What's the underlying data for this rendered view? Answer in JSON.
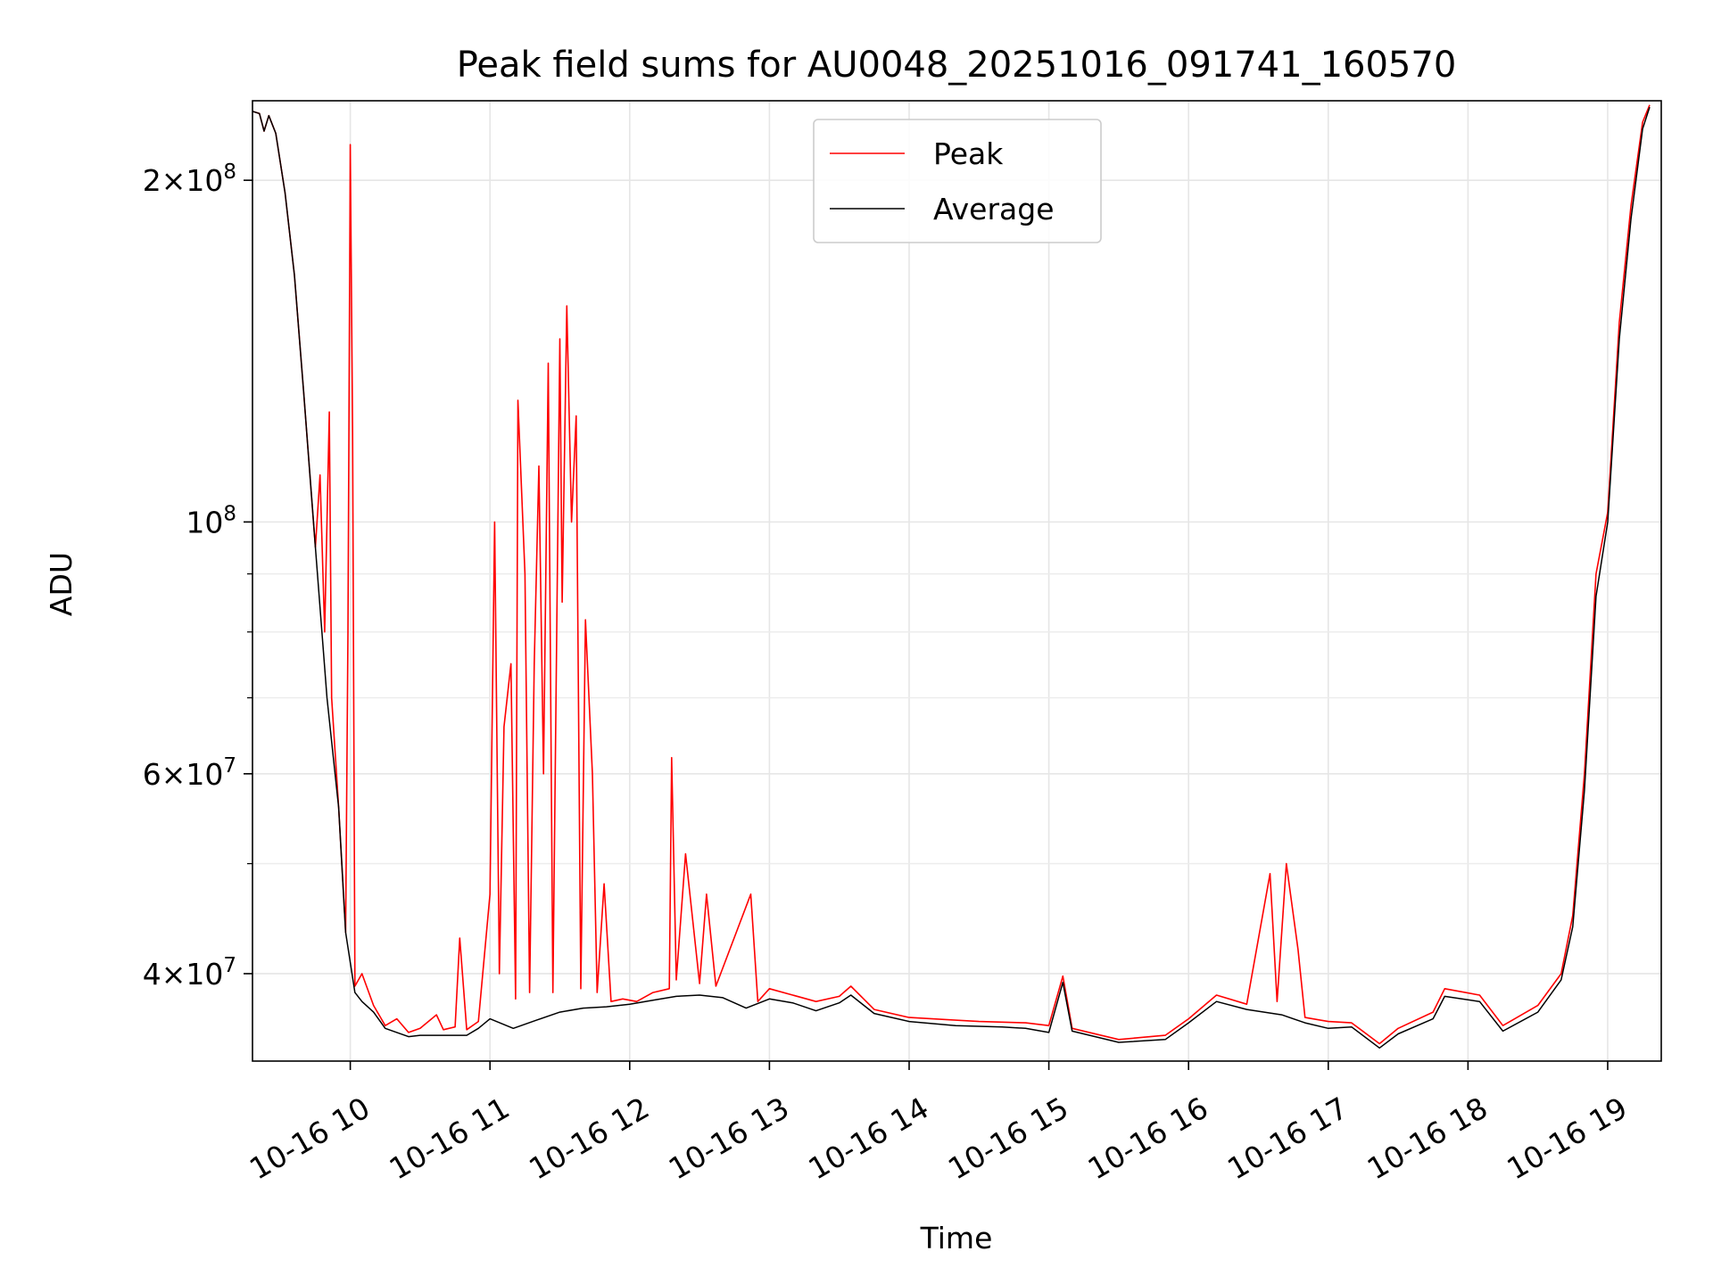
{
  "chart_data": {
    "type": "line",
    "title": "Peak field sums for AU0048_20251016_091741_160570",
    "xlabel": "Time",
    "ylabel": "ADU",
    "yscale": "log",
    "xlim": [
      "2025-10-16 09:18",
      "2025-10-16 19:23"
    ],
    "ylim": [
      33500000,
      235000000
    ],
    "grid": true,
    "legend_position": "top-center",
    "x_ticks": [
      {
        "value": "2025-10-16 10:00",
        "label": "10-16 10"
      },
      {
        "value": "2025-10-16 11:00",
        "label": "10-16 11"
      },
      {
        "value": "2025-10-16 12:00",
        "label": "10-16 12"
      },
      {
        "value": "2025-10-16 13:00",
        "label": "10-16 13"
      },
      {
        "value": "2025-10-16 14:00",
        "label": "10-16 14"
      },
      {
        "value": "2025-10-16 15:00",
        "label": "10-16 15"
      },
      {
        "value": "2025-10-16 16:00",
        "label": "10-16 16"
      },
      {
        "value": "2025-10-16 17:00",
        "label": "10-16 17"
      },
      {
        "value": "2025-10-16 18:00",
        "label": "10-16 18"
      },
      {
        "value": "2025-10-16 19:00",
        "label": "10-16 19"
      }
    ],
    "y_ticks": [
      {
        "value": 40000000,
        "mantissa": "4",
        "times": "×",
        "base": "10",
        "exp": "7"
      },
      {
        "value": 60000000,
        "mantissa": "6",
        "times": "×",
        "base": "10",
        "exp": "7"
      },
      {
        "value": 100000000,
        "mantissa": "",
        "times": "",
        "base": "10",
        "exp": "8"
      },
      {
        "value": 200000000,
        "mantissa": "2",
        "times": "×",
        "base": "10",
        "exp": "8"
      }
    ],
    "y_minor_ticks": [
      50000000,
      70000000,
      80000000,
      90000000
    ],
    "series": [
      {
        "name": "Peak",
        "color": "#ff0000",
        "points": [
          [
            "2025-10-16 09:18",
            230000000
          ],
          [
            "2025-10-16 09:21",
            229000000
          ],
          [
            "2025-10-16 09:23",
            221000000
          ],
          [
            "2025-10-16 09:25",
            228000000
          ],
          [
            "2025-10-16 09:28",
            220000000
          ],
          [
            "2025-10-16 09:32",
            195000000
          ],
          [
            "2025-10-16 09:36",
            165000000
          ],
          [
            "2025-10-16 09:40",
            130000000
          ],
          [
            "2025-10-16 09:45",
            95000000
          ],
          [
            "2025-10-16 09:47",
            110000000
          ],
          [
            "2025-10-16 09:49",
            80000000
          ],
          [
            "2025-10-16 09:51",
            125000000
          ],
          [
            "2025-10-16 09:52",
            70000000
          ],
          [
            "2025-10-16 09:55",
            56000000
          ],
          [
            "2025-10-16 09:58",
            43500000
          ],
          [
            "2025-10-16 09:59",
            80000000
          ],
          [
            "2025-10-16 10:00",
            215000000
          ],
          [
            "2025-10-16 10:01",
            120000000
          ],
          [
            "2025-10-16 10:02",
            39000000
          ],
          [
            "2025-10-16 10:05",
            40000000
          ],
          [
            "2025-10-16 10:10",
            37500000
          ],
          [
            "2025-10-16 10:15",
            36000000
          ],
          [
            "2025-10-16 10:20",
            36500000
          ],
          [
            "2025-10-16 10:25",
            35500000
          ],
          [
            "2025-10-16 10:30",
            35800000
          ],
          [
            "2025-10-16 10:37",
            36800000
          ],
          [
            "2025-10-16 10:40",
            35700000
          ],
          [
            "2025-10-16 10:45",
            35900000
          ],
          [
            "2025-10-16 10:47",
            43000000
          ],
          [
            "2025-10-16 10:50",
            35700000
          ],
          [
            "2025-10-16 10:55",
            36300000
          ],
          [
            "2025-10-16 11:00",
            47000000
          ],
          [
            "2025-10-16 11:02",
            100000000
          ],
          [
            "2025-10-16 11:04",
            40000000
          ],
          [
            "2025-10-16 11:06",
            66000000
          ],
          [
            "2025-10-16 11:09",
            75000000
          ],
          [
            "2025-10-16 11:11",
            38000000
          ],
          [
            "2025-10-16 11:12",
            128000000
          ],
          [
            "2025-10-16 11:15",
            90000000
          ],
          [
            "2025-10-16 11:17",
            38500000
          ],
          [
            "2025-10-16 11:19",
            75000000
          ],
          [
            "2025-10-16 11:21",
            112000000
          ],
          [
            "2025-10-16 11:23",
            60000000
          ],
          [
            "2025-10-16 11:25",
            138000000
          ],
          [
            "2025-10-16 11:27",
            38500000
          ],
          [
            "2025-10-16 11:30",
            145000000
          ],
          [
            "2025-10-16 11:31",
            85000000
          ],
          [
            "2025-10-16 11:33",
            155000000
          ],
          [
            "2025-10-16 11:35",
            100000000
          ],
          [
            "2025-10-16 11:37",
            124000000
          ],
          [
            "2025-10-16 11:39",
            38800000
          ],
          [
            "2025-10-16 11:41",
            82000000
          ],
          [
            "2025-10-16 11:44",
            60000000
          ],
          [
            "2025-10-16 11:46",
            38500000
          ],
          [
            "2025-10-16 11:49",
            48000000
          ],
          [
            "2025-10-16 11:52",
            37800000
          ],
          [
            "2025-10-16 11:57",
            38000000
          ],
          [
            "2025-10-16 12:03",
            37800000
          ],
          [
            "2025-10-16 12:10",
            38500000
          ],
          [
            "2025-10-16 12:17",
            38800000
          ],
          [
            "2025-10-16 12:18",
            62000000
          ],
          [
            "2025-10-16 12:20",
            39500000
          ],
          [
            "2025-10-16 12:24",
            51000000
          ],
          [
            "2025-10-16 12:30",
            39200000
          ],
          [
            "2025-10-16 12:33",
            47000000
          ],
          [
            "2025-10-16 12:37",
            39000000
          ],
          [
            "2025-10-16 12:52",
            47000000
          ],
          [
            "2025-10-16 12:55",
            37800000
          ],
          [
            "2025-10-16 13:00",
            38800000
          ],
          [
            "2025-10-16 13:10",
            38300000
          ],
          [
            "2025-10-16 13:20",
            37800000
          ],
          [
            "2025-10-16 13:30",
            38200000
          ],
          [
            "2025-10-16 13:35",
            39000000
          ],
          [
            "2025-10-16 13:45",
            37200000
          ],
          [
            "2025-10-16 14:00",
            36600000
          ],
          [
            "2025-10-16 14:30",
            36300000
          ],
          [
            "2025-10-16 14:50",
            36200000
          ],
          [
            "2025-10-16 15:00",
            36000000
          ],
          [
            "2025-10-16 15:06",
            39800000
          ],
          [
            "2025-10-16 15:10",
            35800000
          ],
          [
            "2025-10-16 15:30",
            35000000
          ],
          [
            "2025-10-16 15:50",
            35300000
          ],
          [
            "2025-10-16 16:00",
            36500000
          ],
          [
            "2025-10-16 16:12",
            38300000
          ],
          [
            "2025-10-16 16:25",
            37600000
          ],
          [
            "2025-10-16 16:35",
            49000000
          ],
          [
            "2025-10-16 16:38",
            37800000
          ],
          [
            "2025-10-16 16:42",
            50000000
          ],
          [
            "2025-10-16 16:47",
            42000000
          ],
          [
            "2025-10-16 16:50",
            36600000
          ],
          [
            "2025-10-16 17:00",
            36300000
          ],
          [
            "2025-10-16 17:10",
            36200000
          ],
          [
            "2025-10-16 17:22",
            34700000
          ],
          [
            "2025-10-16 17:30",
            35800000
          ],
          [
            "2025-10-16 17:45",
            37000000
          ],
          [
            "2025-10-16 17:50",
            38800000
          ],
          [
            "2025-10-16 18:05",
            38300000
          ],
          [
            "2025-10-16 18:15",
            36000000
          ],
          [
            "2025-10-16 18:30",
            37500000
          ],
          [
            "2025-10-16 18:40",
            40000000
          ],
          [
            "2025-10-16 18:45",
            45000000
          ],
          [
            "2025-10-16 18:50",
            60000000
          ],
          [
            "2025-10-16 18:55",
            90000000
          ],
          [
            "2025-10-16 19:00",
            102000000
          ],
          [
            "2025-10-16 19:05",
            150000000
          ],
          [
            "2025-10-16 19:10",
            190000000
          ],
          [
            "2025-10-16 19:15",
            225000000
          ],
          [
            "2025-10-16 19:18",
            233000000
          ]
        ]
      },
      {
        "name": "Average",
        "color": "#000000",
        "points": [
          [
            "2025-10-16 09:18",
            230000000
          ],
          [
            "2025-10-16 09:21",
            229000000
          ],
          [
            "2025-10-16 09:23",
            221000000
          ],
          [
            "2025-10-16 09:25",
            228000000
          ],
          [
            "2025-10-16 09:28",
            220000000
          ],
          [
            "2025-10-16 09:32",
            195000000
          ],
          [
            "2025-10-16 09:36",
            165000000
          ],
          [
            "2025-10-16 09:40",
            130000000
          ],
          [
            "2025-10-16 09:45",
            95000000
          ],
          [
            "2025-10-16 09:50",
            70000000
          ],
          [
            "2025-10-16 09:55",
            56000000
          ],
          [
            "2025-10-16 09:58",
            43500000
          ],
          [
            "2025-10-16 10:02",
            38500000
          ],
          [
            "2025-10-16 10:05",
            37800000
          ],
          [
            "2025-10-16 10:10",
            37000000
          ],
          [
            "2025-10-16 10:15",
            35800000
          ],
          [
            "2025-10-16 10:20",
            35500000
          ],
          [
            "2025-10-16 10:25",
            35200000
          ],
          [
            "2025-10-16 10:30",
            35300000
          ],
          [
            "2025-10-16 10:40",
            35300000
          ],
          [
            "2025-10-16 10:50",
            35300000
          ],
          [
            "2025-10-16 10:55",
            35800000
          ],
          [
            "2025-10-16 11:00",
            36500000
          ],
          [
            "2025-10-16 11:10",
            35800000
          ],
          [
            "2025-10-16 11:20",
            36400000
          ],
          [
            "2025-10-16 11:30",
            37000000
          ],
          [
            "2025-10-16 11:40",
            37300000
          ],
          [
            "2025-10-16 11:50",
            37400000
          ],
          [
            "2025-10-16 12:00",
            37600000
          ],
          [
            "2025-10-16 12:10",
            37900000
          ],
          [
            "2025-10-16 12:20",
            38200000
          ],
          [
            "2025-10-16 12:30",
            38300000
          ],
          [
            "2025-10-16 12:40",
            38100000
          ],
          [
            "2025-10-16 12:50",
            37300000
          ],
          [
            "2025-10-16 13:00",
            38000000
          ],
          [
            "2025-10-16 13:10",
            37700000
          ],
          [
            "2025-10-16 13:20",
            37100000
          ],
          [
            "2025-10-16 13:30",
            37700000
          ],
          [
            "2025-10-16 13:35",
            38300000
          ],
          [
            "2025-10-16 13:45",
            36900000
          ],
          [
            "2025-10-16 14:00",
            36300000
          ],
          [
            "2025-10-16 14:20",
            36000000
          ],
          [
            "2025-10-16 14:40",
            35900000
          ],
          [
            "2025-10-16 14:50",
            35800000
          ],
          [
            "2025-10-16 15:00",
            35500000
          ],
          [
            "2025-10-16 15:06",
            39300000
          ],
          [
            "2025-10-16 15:10",
            35600000
          ],
          [
            "2025-10-16 15:30",
            34800000
          ],
          [
            "2025-10-16 15:50",
            35000000
          ],
          [
            "2025-10-16 16:00",
            36200000
          ],
          [
            "2025-10-16 16:12",
            37800000
          ],
          [
            "2025-10-16 16:25",
            37200000
          ],
          [
            "2025-10-16 16:40",
            36800000
          ],
          [
            "2025-10-16 16:50",
            36200000
          ],
          [
            "2025-10-16 17:00",
            35800000
          ],
          [
            "2025-10-16 17:10",
            35900000
          ],
          [
            "2025-10-16 17:22",
            34400000
          ],
          [
            "2025-10-16 17:30",
            35400000
          ],
          [
            "2025-10-16 17:45",
            36500000
          ],
          [
            "2025-10-16 17:50",
            38200000
          ],
          [
            "2025-10-16 18:05",
            37800000
          ],
          [
            "2025-10-16 18:15",
            35600000
          ],
          [
            "2025-10-16 18:30",
            37000000
          ],
          [
            "2025-10-16 18:40",
            39500000
          ],
          [
            "2025-10-16 18:45",
            44000000
          ],
          [
            "2025-10-16 18:50",
            58000000
          ],
          [
            "2025-10-16 18:55",
            86000000
          ],
          [
            "2025-10-16 19:00",
            100000000
          ],
          [
            "2025-10-16 19:05",
            145000000
          ],
          [
            "2025-10-16 19:10",
            185000000
          ],
          [
            "2025-10-16 19:15",
            222000000
          ],
          [
            "2025-10-16 19:18",
            232000000
          ]
        ]
      }
    ]
  }
}
